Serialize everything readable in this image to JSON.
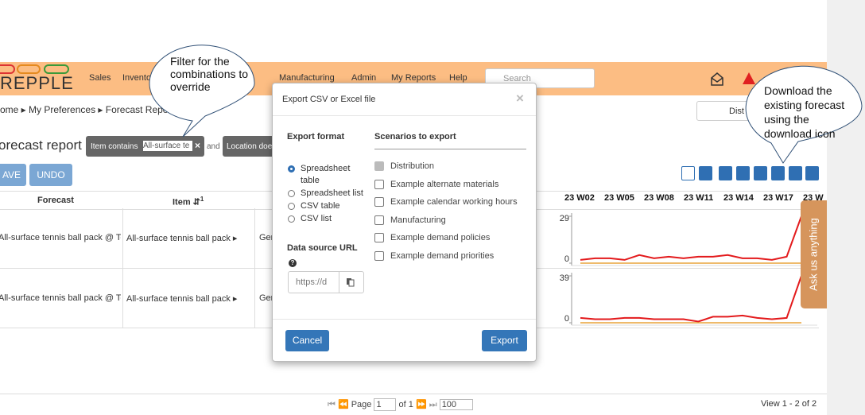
{
  "header": {
    "logo": "REPPLE",
    "menu": [
      "Sales",
      "Invento",
      "Manufacturing",
      "Admin",
      "My Reports",
      "Help"
    ],
    "search_placeholder": "Search"
  },
  "breadcrumb": {
    "items": [
      "ome",
      "My Preferences",
      "Forecast Report"
    ],
    "scenario_button": "Dist"
  },
  "page": {
    "title": "orecast report",
    "filters": [
      {
        "label": "Item contains",
        "value": "All-surface te"
      },
      {
        "label": "Location doe"
      }
    ],
    "filter_joiner": "and",
    "buttons": [
      "AVE",
      "UNDO"
    ]
  },
  "table": {
    "columns": [
      "Forecast",
      "Item"
    ],
    "sort_rank": 1,
    "buckets": [
      "23 W02",
      "23 W05",
      "23 W08",
      "23 W11",
      "23 W14",
      "23 W17",
      "23 W"
    ],
    "rows": [
      [
        "All-surface tennis ball pack @ Te",
        "All-surface tennis ball pack",
        "Ger"
      ],
      [
        "All-surface tennis ball pack @ Te",
        "All-surface tennis ball pack",
        "Ger"
      ]
    ],
    "sparklines": [
      {
        "ylim": [
          0,
          29
        ],
        "yticks": [
          0,
          29
        ],
        "lines": [
          {
            "color": "#e31a1c",
            "values": [
              2,
              3,
              3,
              2,
              5,
              3,
              4,
              3,
              4,
              4,
              5,
              3,
              3,
              2,
              4,
              29
            ]
          },
          {
            "color": "#e8a33a",
            "values": [
              0,
              0,
              0,
              0,
              0,
              0,
              0,
              0,
              0,
              0,
              0,
              0,
              0,
              0,
              0,
              0
            ]
          }
        ]
      },
      {
        "ylim": [
          0,
          39
        ],
        "yticks": [
          0,
          39
        ],
        "lines": [
          {
            "color": "#e31a1c",
            "values": [
              4,
              3,
              3,
              4,
              4,
              3,
              3,
              3,
              1,
              5,
              5,
              6,
              4,
              3,
              4,
              39
            ]
          },
          {
            "color": "#e8a33a",
            "values": [
              0,
              0,
              0,
              0,
              0,
              0,
              0,
              0,
              0,
              0,
              0,
              0,
              0,
              0,
              0,
              0
            ]
          }
        ]
      }
    ]
  },
  "pager": {
    "page_label": "Page",
    "page": "1",
    "of": "of 1",
    "page_size": "100",
    "summary": "View 1 - 2 of 2"
  },
  "side_tab": "Ask us anything",
  "modal": {
    "title": "Export CSV or Excel file",
    "format_heading": "Export format",
    "scenarios_heading": "Scenarios to export",
    "formats": [
      "Spreadsheet table",
      "Spreadsheet list",
      "CSV table",
      "CSV list"
    ],
    "selected_format": 0,
    "url_label": "Data source URL",
    "url_placeholder": "https://d",
    "scenarios": [
      {
        "label": "Distribution",
        "checked": true
      },
      {
        "label": "Example alternate materials",
        "checked": false
      },
      {
        "label": "Example calendar working hours",
        "checked": false
      },
      {
        "label": "Manufacturing",
        "checked": false
      },
      {
        "label": "Example demand policies",
        "checked": false
      },
      {
        "label": "Example demand priorities",
        "checked": false
      }
    ],
    "cancel": "Cancel",
    "export": "Export"
  },
  "callouts": [
    "Filter for the combinations to override",
    "Download the existing forecast using the download icon"
  ]
}
